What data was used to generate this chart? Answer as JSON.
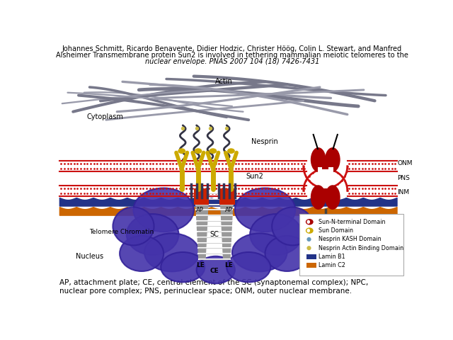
{
  "title_line1": "Johannes Schmitt, Ricardo Benavente, Didier Hodzic, Christer Höög, Colin L. Stewart, and Manfred",
  "title_line2": "Alsheimer Transmembrane protein Sun2 is involved in tethering mammalian meiotic telomeres to the",
  "title_line3": "nuclear envelope. PNAS 2007 104 (18) 7426-7431",
  "caption": "AP, attachment plate; CE, central element of the SC (synaptonemal complex); NPC,\nnuclear pore complex; PNS, perinuclear space; ONM, outer nuclear membrane.",
  "bg_color": "#ffffff",
  "legend_items": [
    {
      "label": "Sun-N-terminal Domain",
      "color": "#aa0000",
      "marker": "kidney"
    },
    {
      "label": "Sun Domain",
      "color": "#ccaa00",
      "marker": "kidney"
    },
    {
      "label": "Nesprin KASH Domain",
      "color": "#6699bb",
      "marker": "dot"
    },
    {
      "label": "Nesprin Actin Binding Domain",
      "color": "#ccbb44",
      "marker": "dot"
    },
    {
      "label": "Lamin B1",
      "color": "#223388",
      "marker": "rect"
    },
    {
      "label": "Lamin C2",
      "color": "#cc6600",
      "marker": "rect"
    }
  ],
  "actin_color": "#888899",
  "nesprin_color": "#444455",
  "membrane_red": "#cc1111",
  "membrane_white": "#ffffff",
  "lamin_b1_color": "#223388",
  "lamin_c2_color": "#cc6600",
  "npc_color": "#aa0000",
  "sc_rail_color": "#aaaaaa",
  "sc_rung_color": "#888888",
  "chromatin_color": "#4433aa",
  "chromatin_edge": "#332299",
  "ap_color": "#cc2200",
  "sun2_color": "#ccaa00",
  "label_fontsize": 7.0,
  "title_fontsize": 7.0,
  "caption_fontsize": 7.5
}
